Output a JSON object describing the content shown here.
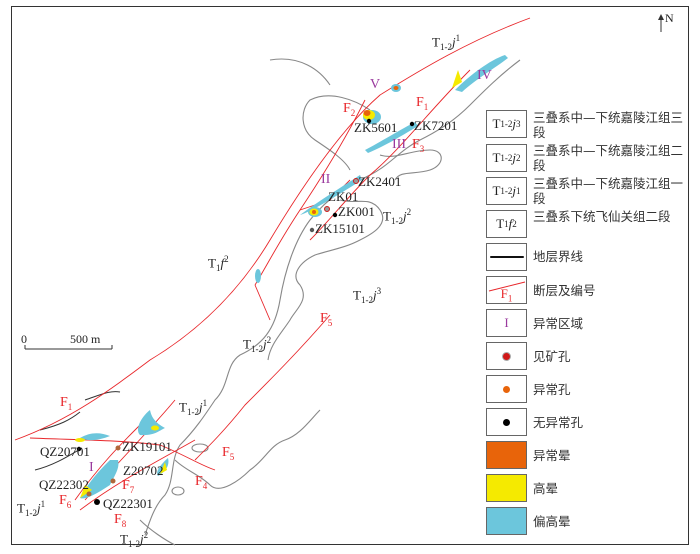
{
  "north_label": "N",
  "scale": {
    "zero": "0",
    "distance": "500 m"
  },
  "units": {
    "t12j3": {
      "base": "T",
      "sub": "1-2",
      "sym": "j",
      "sup": "3"
    },
    "t12j2": {
      "base": "T",
      "sub": "1-2",
      "sym": "j",
      "sup": "2"
    },
    "t12j1": {
      "base": "T",
      "sub": "1-2",
      "sym": "j",
      "sup": "1"
    },
    "t1f2": {
      "base": "T",
      "sub": "1",
      "sym": "f",
      "sup": "2"
    }
  },
  "faults": {
    "f1": {
      "base": "F",
      "sub": "1"
    },
    "f2": {
      "base": "F",
      "sub": "2"
    },
    "f3": {
      "base": "F",
      "sub": "3"
    },
    "f4": {
      "base": "F",
      "sub": "4"
    },
    "f5": {
      "base": "F",
      "sub": "5"
    },
    "f6": {
      "base": "F",
      "sub": "6"
    },
    "f7": {
      "base": "F",
      "sub": "7"
    },
    "f8": {
      "base": "F",
      "sub": "8"
    }
  },
  "zones": [
    "I",
    "II",
    "III",
    "IV",
    "V"
  ],
  "boreholes": [
    "ZK5601",
    "ZK7201",
    "ZK2401",
    "ZK01",
    "ZK001",
    "ZK15101",
    "ZK19101",
    "QZ20701",
    "Z20702",
    "QZ22302",
    "QZ22301"
  ],
  "legend": [
    {
      "text": "三叠系中—下统嘉陵江组三段"
    },
    {
      "text": "三叠系中—下统嘉陵江组二段"
    },
    {
      "text": "三叠系中—下统嘉陵江组一段"
    },
    {
      "text": "三叠系下统飞仙关组二段"
    },
    {
      "text": "地层界线"
    },
    {
      "text": "断层及编号"
    },
    {
      "text": "异常区域"
    },
    {
      "text": "见矿孔"
    },
    {
      "text": "异常孔"
    },
    {
      "text": "无异常孔"
    },
    {
      "text": "异常晕"
    },
    {
      "text": "高晕"
    },
    {
      "text": "偏高晕"
    }
  ],
  "colors": {
    "fault": "#e8262a",
    "boundary": "#555555",
    "anomaly": "#e8640a",
    "high": "#f5ea00",
    "elevated": "#6cc6dc",
    "zone": "#9a3a9e",
    "ore_hole": "#d01818",
    "anomaly_hole": "#e8640a",
    "no_anomaly_hole": "#000000"
  }
}
